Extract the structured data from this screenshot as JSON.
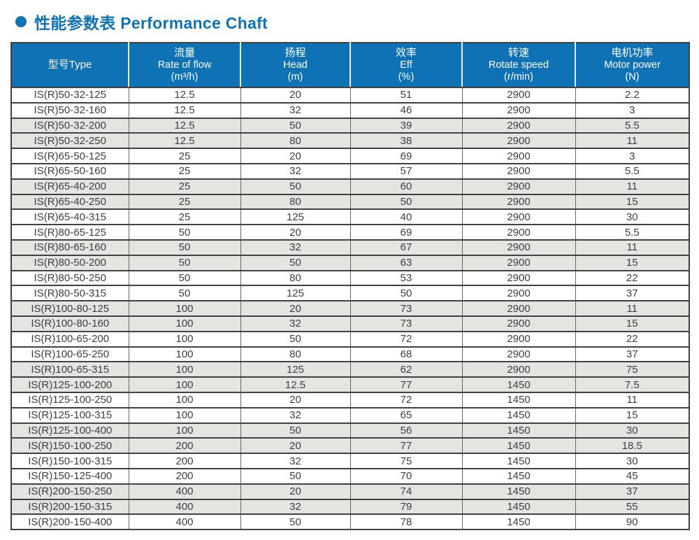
{
  "title": {
    "cn": "性能参数表",
    "en": "Performance Chaft"
  },
  "colors": {
    "header_blue": "#0f72b5",
    "title_blue": "#0f72b5",
    "shaded_row": "#e4e4e1",
    "grid_dark": "#414141",
    "grid_mid": "#666666",
    "body_text": "#3e3e3e"
  },
  "table": {
    "columns": [
      {
        "cn": "型号Type",
        "en": "",
        "unit": ""
      },
      {
        "cn": "流量",
        "en": "Rate of flow",
        "unit": "(m³/h)"
      },
      {
        "cn": "扬程",
        "en": "Head",
        "unit": "(m)"
      },
      {
        "cn": "效率",
        "en": "Eff",
        "unit": "(%)"
      },
      {
        "cn": "转速",
        "en": "Rotate speed",
        "unit": "(r/min)"
      },
      {
        "cn": "电机功率",
        "en": "Motor power",
        "unit": "(N)"
      }
    ],
    "rows": [
      [
        "IS(R)50-32-125",
        "12.5",
        "20",
        "51",
        "2900",
        "2.2"
      ],
      [
        "IS(R)50-32-160",
        "12.5",
        "32",
        "46",
        "2900",
        "3"
      ],
      [
        "IS(R)50-32-200",
        "12.5",
        "50",
        "39",
        "2900",
        "5.5"
      ],
      [
        "IS(R)50-32-250",
        "12.5",
        "80",
        "38",
        "2900",
        "11"
      ],
      [
        "IS(R)65-50-125",
        "25",
        "20",
        "69",
        "2900",
        "3"
      ],
      [
        "IS(R)65-50-160",
        "25",
        "32",
        "57",
        "2900",
        "5.5"
      ],
      [
        "IS(R)65-40-200",
        "25",
        "50",
        "60",
        "2900",
        "11"
      ],
      [
        "IS(R)65-40-250",
        "25",
        "80",
        "50",
        "2900",
        "15"
      ],
      [
        "IS(R)65-40-315",
        "25",
        "125",
        "40",
        "2900",
        "30"
      ],
      [
        "IS(R)80-65-125",
        "50",
        "20",
        "69",
        "2900",
        "5.5"
      ],
      [
        "IS(R)80-65-160",
        "50",
        "32",
        "67",
        "2900",
        "11"
      ],
      [
        "IS(R)80-50-200",
        "50",
        "50",
        "63",
        "2900",
        "15"
      ],
      [
        "IS(R)80-50-250",
        "50",
        "80",
        "53",
        "2900",
        "22"
      ],
      [
        "IS(R)80-50-315",
        "50",
        "125",
        "50",
        "2900",
        "37"
      ],
      [
        "IS(R)100-80-125",
        "100",
        "20",
        "73",
        "2900",
        "11"
      ],
      [
        "IS(R)100-80-160",
        "100",
        "32",
        "73",
        "2900",
        "15"
      ],
      [
        "IS(R)100-65-200",
        "100",
        "50",
        "72",
        "2900",
        "22"
      ],
      [
        "IS(R)100-65-250",
        "100",
        "80",
        "68",
        "2900",
        "37"
      ],
      [
        "IS(R)100-65-315",
        "100",
        "125",
        "62",
        "2900",
        "75"
      ],
      [
        "IS(R)125-100-200",
        "100",
        "12.5",
        "77",
        "1450",
        "7.5"
      ],
      [
        "IS(R)125-100-250",
        "100",
        "20",
        "72",
        "1450",
        "11"
      ],
      [
        "IS(R)125-100-315",
        "100",
        "32",
        "65",
        "1450",
        "15"
      ],
      [
        "IS(R)125-100-400",
        "100",
        "50",
        "56",
        "1450",
        "30"
      ],
      [
        "IS(R)150-100-250",
        "200",
        "20",
        "77",
        "1450",
        "18.5"
      ],
      [
        "IS(R)150-100-315",
        "200",
        "32",
        "75",
        "1450",
        "30"
      ],
      [
        "IS(R)150-125-400",
        "200",
        "50",
        "70",
        "1450",
        "45"
      ],
      [
        "IS(R)200-150-250",
        "400",
        "20",
        "74",
        "1450",
        "37"
      ],
      [
        "IS(R)200-150-315",
        "400",
        "32",
        "79",
        "1450",
        "55"
      ],
      [
        "IS(R)200-150-400",
        "400",
        "50",
        "78",
        "1450",
        "90"
      ]
    ]
  }
}
